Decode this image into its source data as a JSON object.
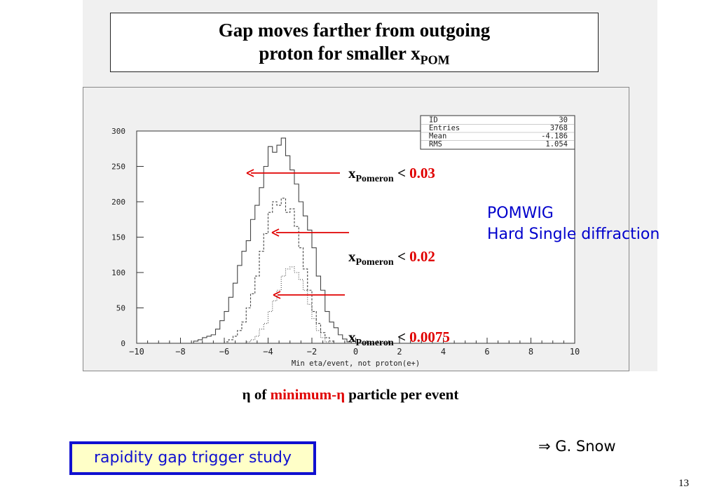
{
  "title": {
    "line1": "Gap moves farther from outgoing",
    "line2_text": "proton for smaller x",
    "line2_sub": "POM"
  },
  "stats": {
    "rows": [
      {
        "label": "ID",
        "value": "30"
      },
      {
        "label": "Entries",
        "value": "3768"
      },
      {
        "label": "Mean",
        "value": "-4.186"
      },
      {
        "label": "RMS",
        "value": "1.054"
      }
    ]
  },
  "cuts": [
    {
      "x": "x",
      "sub": "Pomeron",
      "op": " < ",
      "value": "0.03"
    },
    {
      "x": "x",
      "sub": "Pomeron",
      "op": " < ",
      "value": "0.02"
    },
    {
      "x": "x",
      "sub": "Pomeron",
      "op": " < ",
      "value": "0.0075"
    }
  ],
  "pomwig": {
    "line1": "POMWIG",
    "line2": "Hard Single diffraction"
  },
  "xlabel_caption": {
    "pre": "η of ",
    "red": "minimum-η",
    "post": " particle per event"
  },
  "trigger_label": "rapidity gap trigger study",
  "credit": "⇒ G. Snow",
  "page_number": "13",
  "colors": {
    "accent_red": "#e00000",
    "blue_text": "#0000cc",
    "trigger_border": "#1010d0",
    "trigger_bg": "#ffffc8"
  },
  "chart_data": {
    "type": "histogram",
    "title": "",
    "xlabel": "Min eta/event, not proton(e+)",
    "ylabel": "",
    "xlim": [
      -10,
      10
    ],
    "ylim": [
      0,
      300
    ],
    "xticks": [
      -10,
      -8,
      -6,
      -4,
      -2,
      0,
      2,
      4,
      6,
      8,
      10
    ],
    "yticks": [
      0,
      50,
      100,
      150,
      200,
      250,
      300
    ],
    "xtick_labels": [
      "−10",
      "−8",
      "−6",
      "−4",
      "−2",
      "0",
      "2",
      "4",
      "6",
      "8",
      "10"
    ],
    "ytick_labels": [
      "0",
      "50",
      "100",
      "150",
      "200",
      "250",
      "300"
    ],
    "bin_width": 0.2,
    "series": [
      {
        "style": "solid",
        "x_start": -7.4,
        "values": [
          3,
          5,
          8,
          10,
          12,
          20,
          32,
          45,
          65,
          85,
          110,
          130,
          145,
          175,
          195,
          220,
          250,
          278,
          270,
          280,
          290,
          265,
          245,
          225,
          200,
          180,
          160,
          135,
          95,
          75,
          45,
          30,
          22,
          12,
          6,
          2
        ]
      },
      {
        "style": "dashed",
        "x_start": -6.0,
        "values": [
          2,
          5,
          10,
          18,
          30,
          50,
          70,
          95,
          130,
          155,
          185,
          200,
          195,
          205,
          185,
          190,
          165,
          135,
          105,
          75,
          45,
          28,
          15,
          8,
          3
        ]
      },
      {
        "style": "dotted",
        "x_start": -5.0,
        "values": [
          2,
          5,
          10,
          20,
          28,
          45,
          60,
          75,
          95,
          105,
          108,
          100,
          90,
          75,
          55,
          35,
          18,
          8,
          2
        ]
      }
    ]
  }
}
